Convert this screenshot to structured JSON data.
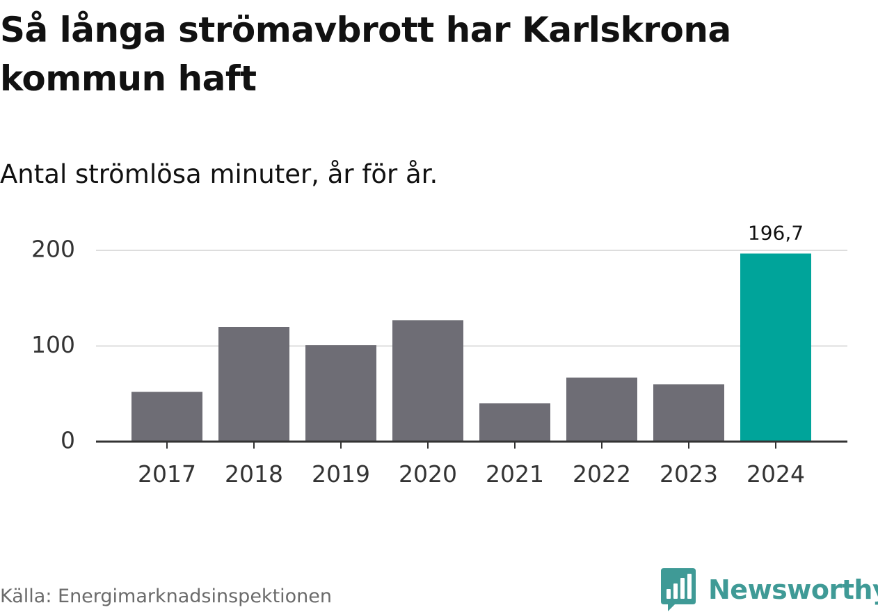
{
  "title": "Så långa strömavbrott har Karlskrona kommun haft",
  "subtitle": "Antal strömlösa minuter, år för år.",
  "source": "Källa: Energimarknadsinspektionen",
  "logo": {
    "text": "Newsworthy",
    "icon": "bar-chart-speech-bubble-icon",
    "color": "#3f9a96"
  },
  "chart_data": {
    "type": "bar",
    "categories": [
      "2017",
      "2018",
      "2019",
      "2020",
      "2021",
      "2022",
      "2023",
      "2024"
    ],
    "values": [
      52,
      120,
      101,
      127,
      40,
      67,
      60,
      196.7
    ],
    "highlight_index": 7,
    "data_labels": [
      "",
      "",
      "",
      "",
      "",
      "",
      "",
      "196,7"
    ],
    "xlabel": "",
    "ylabel": "",
    "ylim": [
      0,
      200
    ],
    "yticks": [
      0,
      100,
      200
    ],
    "ytick_labels": [
      "0",
      "100",
      "200"
    ],
    "grid": true,
    "legend": "none",
    "colors": {
      "bar": "#6e6d75",
      "highlight": "#00a49a",
      "grid": "#dddddd",
      "axis": "#333333",
      "text": "#111111",
      "tick_text": "#333333"
    }
  }
}
